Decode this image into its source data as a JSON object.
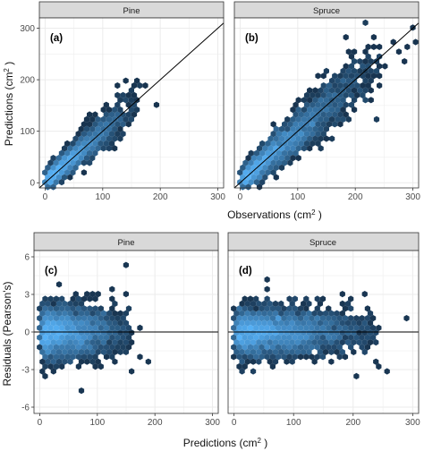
{
  "chart_data": [
    {
      "type": "hexbin",
      "panel_tag": "(a)",
      "facet": "Pine",
      "xlim": [
        -10,
        310
      ],
      "ylim": [
        -10,
        320
      ],
      "xticks": [
        0,
        100,
        200,
        300
      ],
      "yticks": [
        0,
        100,
        200,
        300
      ],
      "reference_line": {
        "kind": "identity",
        "slope": 1,
        "intercept": 0
      },
      "cloud": {
        "x_range": [
          0,
          160
        ],
        "slope": 0.95,
        "intercept": 3,
        "spread": 18,
        "dense_center": [
          40,
          38
        ]
      },
      "outliers": [
        [
          178,
          186
        ],
        [
          195,
          150
        ],
        [
          150,
          168
        ],
        [
          165,
          185
        ],
        [
          158,
          140
        ]
      ]
    },
    {
      "type": "hexbin",
      "panel_tag": "(b)",
      "facet": "Spruce",
      "xlim": [
        -10,
        310
      ],
      "ylim": [
        -10,
        320
      ],
      "xticks": [
        0,
        100,
        200,
        300
      ],
      "yticks": [
        0,
        100,
        200,
        300
      ],
      "reference_line": {
        "kind": "identity",
        "slope": 1,
        "intercept": 0
      },
      "cloud": {
        "x_range": [
          0,
          240
        ],
        "slope": 0.95,
        "intercept": 3,
        "spread": 22,
        "dense_center": [
          40,
          38
        ]
      },
      "outliers": [
        [
          300,
          275
        ],
        [
          290,
          260
        ],
        [
          280,
          250
        ],
        [
          285,
          235
        ],
        [
          300,
          300
        ],
        [
          270,
          270
        ],
        [
          240,
          268
        ],
        [
          250,
          225
        ]
      ]
    },
    {
      "type": "hexbin",
      "panel_tag": "(c)",
      "facet": "Pine",
      "xlim": [
        -10,
        310
      ],
      "ylim": [
        -6.5,
        6.5
      ],
      "xticks": [
        0,
        100,
        200,
        300
      ],
      "yticks": [
        -6,
        -3,
        0,
        3,
        6
      ],
      "reference_line": {
        "kind": "horizontal",
        "y": 0
      },
      "cloud": {
        "x_range": [
          0,
          160
        ],
        "y_spread": 1.0,
        "dense_center": [
          45,
          0
        ]
      },
      "outliers": [
        [
          150,
          5.2
        ],
        [
          68,
          -4.5
        ],
        [
          190,
          -2.2
        ],
        [
          170,
          -1.8
        ],
        [
          155,
          2.0
        ],
        [
          175,
          0.5
        ]
      ]
    },
    {
      "type": "hexbin",
      "panel_tag": "(d)",
      "facet": "Spruce",
      "xlim": [
        -10,
        310
      ],
      "ylim": [
        -6.5,
        6.5
      ],
      "xticks": [
        0,
        100,
        200,
        300
      ],
      "yticks": [
        -6,
        -3,
        0,
        3,
        6
      ],
      "reference_line": {
        "kind": "horizontal",
        "y": 0
      },
      "cloud": {
        "x_range": [
          0,
          240
        ],
        "y_spread": 0.9,
        "dense_center": [
          45,
          0
        ]
      },
      "outliers": [
        [
          60,
          4.3
        ],
        [
          290,
          1.2
        ],
        [
          240,
          -2.5
        ],
        [
          260,
          -3.0
        ],
        [
          220,
          1.8
        ],
        [
          210,
          -3.5
        ],
        [
          200,
          2.5
        ]
      ]
    }
  ],
  "labels": {
    "top_ylabel": "Predictions (cm",
    "top_xlabel": "Observations (cm",
    "bottom_ylabel": "Residuals (Pearson's)",
    "bottom_xlabel": "Predictions (cm",
    "sq": "2",
    "close": " )"
  },
  "colors": {
    "hex_low": "#132b43",
    "hex_high": "#56b1f7",
    "strip_fill": "#d9d9d9",
    "panel_border": "#333333",
    "grid": "#ebebeb",
    "ref_line": "#000000"
  }
}
